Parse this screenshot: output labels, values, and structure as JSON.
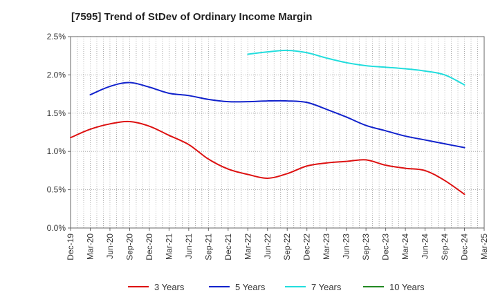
{
  "chart_data": {
    "type": "line",
    "title": "[7595]  Trend of StDev of Ordinary Income Margin",
    "xlabel": "",
    "ylabel": "",
    "x_ticks": [
      "Dec-19",
      "Mar-20",
      "Jun-20",
      "Sep-20",
      "Dec-20",
      "Mar-21",
      "Jun-21",
      "Sep-21",
      "Dec-21",
      "Mar-22",
      "Jun-22",
      "Sep-22",
      "Dec-22",
      "Mar-23",
      "Jun-23",
      "Sep-23",
      "Dec-23",
      "Mar-24",
      "Jun-24",
      "Sep-24",
      "Dec-24",
      "Mar-25"
    ],
    "y_ticks": [
      "0.0%",
      "0.5%",
      "1.0%",
      "1.5%",
      "2.0%",
      "2.5%"
    ],
    "ylim": [
      0,
      2.5
    ],
    "grid": true,
    "legend_position": "bottom",
    "series": [
      {
        "name": "3 Years",
        "color": "#dd1111",
        "points": [
          [
            "Dec-19",
            1.18
          ],
          [
            "Mar-20",
            1.29
          ],
          [
            "Jun-20",
            1.36
          ],
          [
            "Sep-20",
            1.39
          ],
          [
            "Dec-20",
            1.33
          ],
          [
            "Mar-21",
            1.21
          ],
          [
            "Jun-21",
            1.09
          ],
          [
            "Sep-21",
            0.9
          ],
          [
            "Dec-21",
            0.77
          ],
          [
            "Mar-22",
            0.7
          ],
          [
            "Jun-22",
            0.65
          ],
          [
            "Sep-22",
            0.71
          ],
          [
            "Dec-22",
            0.81
          ],
          [
            "Mar-23",
            0.85
          ],
          [
            "Jun-23",
            0.87
          ],
          [
            "Sep-23",
            0.89
          ],
          [
            "Dec-23",
            0.82
          ],
          [
            "Mar-24",
            0.78
          ],
          [
            "Jun-24",
            0.75
          ],
          [
            "Sep-24",
            0.62
          ],
          [
            "Dec-24",
            0.44
          ]
        ]
      },
      {
        "name": "5 Years",
        "color": "#1122cc",
        "points": [
          [
            "Mar-20",
            1.74
          ],
          [
            "Jun-20",
            1.85
          ],
          [
            "Sep-20",
            1.9
          ],
          [
            "Dec-20",
            1.84
          ],
          [
            "Mar-21",
            1.76
          ],
          [
            "Jun-21",
            1.73
          ],
          [
            "Sep-21",
            1.68
          ],
          [
            "Dec-21",
            1.65
          ],
          [
            "Mar-22",
            1.65
          ],
          [
            "Jun-22",
            1.66
          ],
          [
            "Sep-22",
            1.66
          ],
          [
            "Dec-22",
            1.64
          ],
          [
            "Mar-23",
            1.55
          ],
          [
            "Jun-23",
            1.45
          ],
          [
            "Sep-23",
            1.34
          ],
          [
            "Dec-23",
            1.27
          ],
          [
            "Mar-24",
            1.2
          ],
          [
            "Jun-24",
            1.15
          ],
          [
            "Sep-24",
            1.1
          ],
          [
            "Dec-24",
            1.05
          ]
        ]
      },
      {
        "name": "7 Years",
        "color": "#22dddd",
        "points": [
          [
            "Mar-22",
            2.27
          ],
          [
            "Jun-22",
            2.3
          ],
          [
            "Sep-22",
            2.32
          ],
          [
            "Dec-22",
            2.29
          ],
          [
            "Mar-23",
            2.22
          ],
          [
            "Jun-23",
            2.16
          ],
          [
            "Sep-23",
            2.12
          ],
          [
            "Dec-23",
            2.1
          ],
          [
            "Mar-24",
            2.08
          ],
          [
            "Jun-24",
            2.05
          ],
          [
            "Sep-24",
            2.0
          ],
          [
            "Dec-24",
            1.87
          ]
        ]
      },
      {
        "name": "10 Years",
        "color": "#228822",
        "points": []
      }
    ]
  }
}
